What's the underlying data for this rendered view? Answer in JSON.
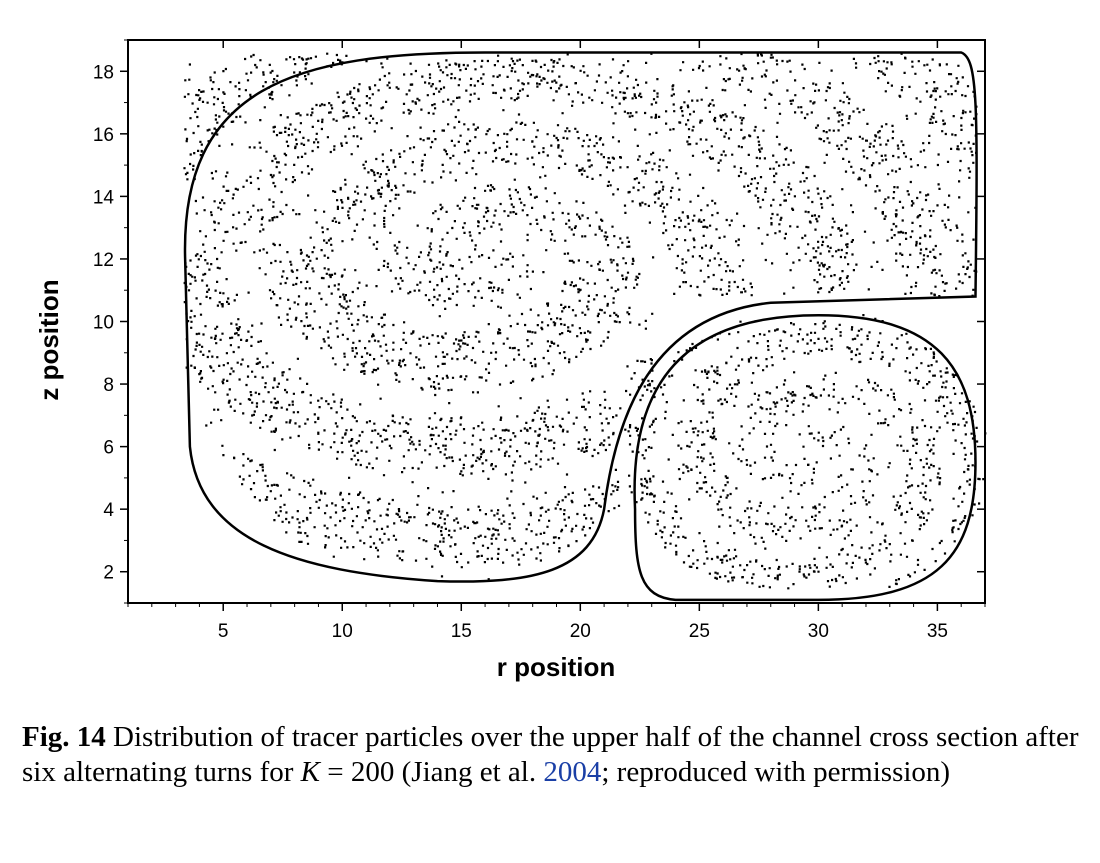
{
  "chart_data": {
    "type": "scatter",
    "title": "",
    "xlabel": "r position",
    "ylabel": "z position",
    "xlim": [
      1,
      37
    ],
    "ylim": [
      1,
      19
    ],
    "x_ticks": [
      5,
      10,
      15,
      20,
      25,
      30,
      35
    ],
    "y_ticks": [
      2,
      4,
      6,
      8,
      10,
      12,
      14,
      16,
      18
    ],
    "legend": "none",
    "grid": false,
    "point_color": "#000000",
    "series": [
      {
        "values": [
          {
            "x": 3.5,
            "y": 12.0
          },
          {
            "x": 5.0,
            "y": 17.0
          },
          {
            "x": 10.0,
            "y": 18.4
          },
          {
            "x": 20.0,
            "y": 18.5
          },
          {
            "x": 30.0,
            "y": 18.5
          },
          {
            "x": 36.0,
            "y": 18.0
          },
          {
            "x": 13.0,
            "y": 13.2
          },
          {
            "x": 18.0,
            "y": 12.5
          },
          {
            "x": 28.5,
            "y": 5.0
          },
          {
            "x": 30.0,
            "y": 6.5
          },
          {
            "x": 24.0,
            "y": 2.5
          },
          {
            "x": 33.0,
            "y": 2.0
          },
          {
            "x": 12.0,
            "y": 2.0
          },
          {
            "x": 19.0,
            "y": 2.5
          },
          {
            "x": 8.0,
            "y": 7.5
          }
        ]
      }
    ]
  },
  "caption": {
    "label": "Fig. 14",
    "text_before_k": "Distribution of tracer particles over the upper half of the channel cross section after six alternating turns for",
    "k_symbol": "K",
    "k_value": " = 200 (Jiang et al.",
    "citation_year": "2004",
    "text_after": "; reproduced with permission)"
  }
}
